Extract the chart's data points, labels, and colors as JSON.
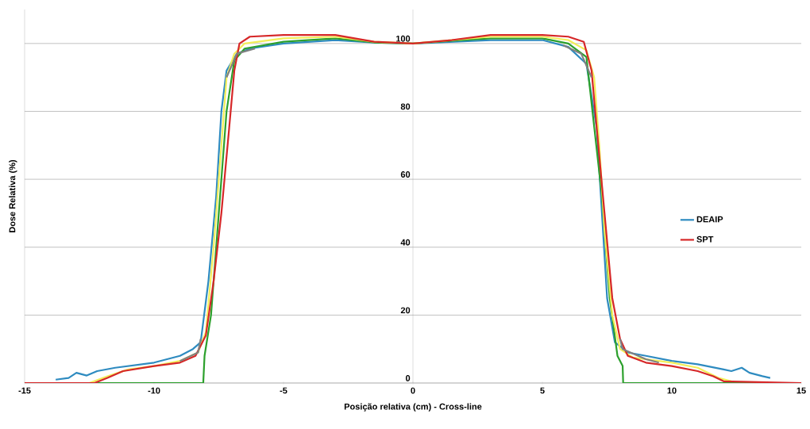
{
  "chart_data": {
    "type": "line",
    "xlabel": "Posição relativa (cm) - Cross-line",
    "ylabel": "Dose Relativa (%)",
    "xlim": [
      -15,
      15
    ],
    "xticks": [
      -15,
      -10,
      -5,
      0,
      5,
      10,
      15
    ],
    "ylim": [
      0,
      110
    ],
    "yticks": [
      0,
      20,
      40,
      60,
      80,
      100
    ],
    "grid": "y",
    "legend": "right",
    "series": [
      {
        "name": "DEAIP",
        "color": "#2e8bc0",
        "x": [
          -13.8,
          -13.3,
          -13,
          -12.6,
          -12.2,
          -11.5,
          -10,
          -9,
          -8.5,
          -8.2,
          -7.9,
          -7.6,
          -7.4,
          -7.2,
          -6.8,
          -6.3,
          -5,
          -3,
          -1.5,
          0,
          1.5,
          3,
          5,
          6,
          6.7,
          7.1,
          7.3,
          7.5,
          7.8,
          8.3,
          9,
          10,
          11,
          12,
          12.3,
          12.7,
          13,
          13.5,
          13.8
        ],
        "values": [
          1,
          1.5,
          3,
          2.2,
          3.5,
          4.5,
          6,
          8,
          10,
          12,
          30,
          55,
          80,
          92,
          97,
          98.5,
          100,
          101,
          100.3,
          100,
          100.5,
          101,
          101,
          99,
          94,
          75,
          50,
          25,
          12,
          9,
          8,
          6.5,
          5.5,
          4,
          3.5,
          4.5,
          3,
          2,
          1.5
        ]
      },
      {
        "color": "#2ca02c",
        "x": [
          -15,
          -8.1,
          -8.05,
          -7.8,
          -7.5,
          -7.2,
          -6.9,
          -6.5,
          -5,
          -3,
          -1.5,
          0,
          1.5,
          3,
          5,
          6,
          6.7,
          7.3,
          7.6,
          7.9,
          8.1,
          8.12,
          15
        ],
        "values": [
          0,
          0,
          8,
          20,
          50,
          80,
          95,
          98.5,
          100.5,
          101.5,
          100.3,
          100,
          100.8,
          101.5,
          101.5,
          100,
          96,
          55,
          25,
          8,
          5,
          0,
          0
        ]
      },
      {
        "color": "#f2ee5a",
        "x": [
          -12.5,
          -11.8,
          -11,
          -10,
          -9,
          -8.3,
          -8,
          -7.7,
          -7.4,
          -7.2,
          -6.9,
          -6.5,
          -5,
          -3,
          -1.5,
          0,
          1.5,
          3,
          5,
          6,
          6.7,
          7,
          7.2,
          7.4,
          7.7,
          8,
          8.5,
          10,
          11,
          11.8,
          12.3
        ],
        "values": [
          0,
          2,
          4,
          5,
          6.5,
          9,
          15,
          40,
          70,
          90,
          97,
          100,
          101.5,
          102,
          100.5,
          100,
          101,
          102,
          102,
          101,
          98,
          90,
          70,
          45,
          20,
          10,
          7.5,
          6,
          4.5,
          1.5,
          0.5
        ]
      },
      {
        "name": "SPT",
        "color": "#d62728",
        "x": [
          -15,
          -12.3,
          -11.8,
          -11.2,
          -10,
          -9,
          -8.4,
          -8,
          -7.7,
          -7.4,
          -7.1,
          -6.9,
          -6.7,
          -6.3,
          -5,
          -3,
          -1.5,
          0,
          1.5,
          3,
          5,
          6,
          6.6,
          6.9,
          7.1,
          7.4,
          7.7,
          8,
          8.3,
          9,
          10,
          11,
          11.6,
          12,
          13,
          15
        ],
        "values": [
          0,
          0,
          1.5,
          3.5,
          5,
          6,
          8,
          14,
          30,
          50,
          75,
          92,
          100,
          102,
          102.5,
          102.5,
          100.5,
          100,
          101,
          102.5,
          102.5,
          102,
          100.5,
          92,
          75,
          50,
          25,
          13,
          8,
          6,
          5,
          3.5,
          2,
          0.5,
          0.3,
          0
        ]
      },
      {
        "color": "#808080",
        "x": [
          -9,
          -8.3,
          -8.2,
          -8.1,
          -7.2,
          -6.8,
          -6.1,
          5,
          5.8,
          6.5,
          6.9,
          7,
          8,
          8.1,
          9,
          9.5
        ],
        "values": [
          6.5,
          9,
          13,
          null,
          90,
          97,
          98.5,
          null,
          99.5,
          97,
          90,
          null,
          13,
          10,
          7,
          6
        ]
      }
    ]
  }
}
